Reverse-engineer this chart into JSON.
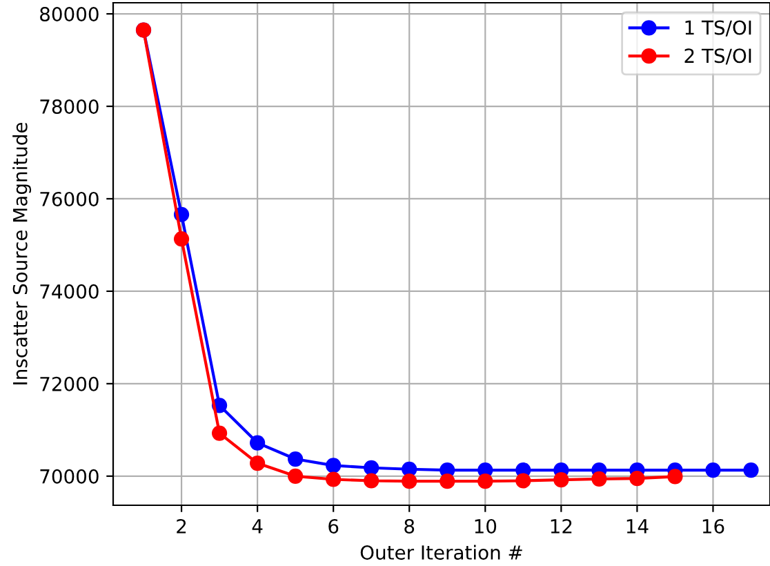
{
  "chart_data": {
    "type": "line",
    "xlabel": "Outer Iteration #",
    "ylabel": "Inscatter Source Magnitude",
    "x": [
      1,
      2,
      3,
      4,
      5,
      6,
      7,
      8,
      9,
      10,
      11,
      12,
      13,
      14,
      15,
      16,
      17
    ],
    "series": [
      {
        "name": "1 TS/OI",
        "color": "#0000ff",
        "values": [
          79650,
          75660,
          71530,
          70720,
          70370,
          70230,
          70180,
          70150,
          70130,
          70130,
          70130,
          70130,
          70130,
          70130,
          70130,
          70130,
          70130
        ]
      },
      {
        "name": "2 TS/OI",
        "color": "#ff0000",
        "x": [
          1,
          2,
          3,
          4,
          5,
          6,
          7,
          8,
          9,
          10,
          11,
          12,
          13,
          14,
          15
        ],
        "values": [
          79650,
          75130,
          70930,
          70280,
          70000,
          69930,
          69900,
          69890,
          69890,
          69890,
          69900,
          69920,
          69940,
          69950,
          69990
        ]
      }
    ],
    "xlim": [
      0.2,
      17.5
    ],
    "ylim": [
      69370,
      80240
    ],
    "xticks": [
      2,
      4,
      6,
      8,
      10,
      12,
      14,
      16
    ],
    "yticks": [
      70000,
      72000,
      74000,
      76000,
      78000,
      80000
    ],
    "grid": true,
    "legend": "top right",
    "marker": "circle",
    "line_style": "solid"
  }
}
